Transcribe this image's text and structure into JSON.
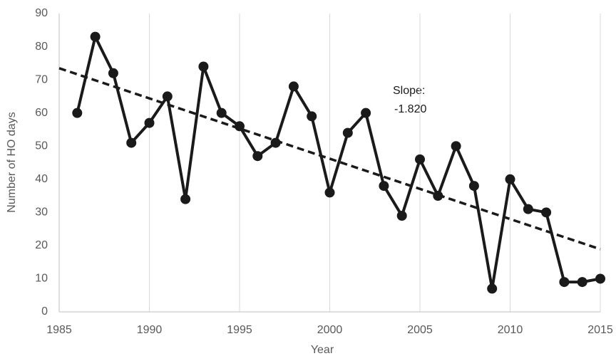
{
  "chart_data": {
    "type": "line",
    "x_label": "Year",
    "y_label": "Number of HO days",
    "x": [
      1986,
      1987,
      1988,
      1989,
      1990,
      1991,
      1992,
      1993,
      1994,
      1995,
      1996,
      1997,
      1998,
      1999,
      2000,
      2001,
      2002,
      2003,
      2004,
      2005,
      2006,
      2007,
      2008,
      2009,
      2010,
      2011,
      2012,
      2013,
      2014,
      2015
    ],
    "series": [
      {
        "color": "#1a1a1a",
        "values": [
          60,
          83,
          72,
          51,
          57,
          65,
          34,
          74,
          60,
          56,
          47,
          51,
          68,
          59,
          36,
          54,
          60,
          38,
          29,
          46,
          35,
          50,
          38,
          7,
          40,
          31,
          30,
          9,
          9,
          10
        ]
      }
    ],
    "trendline": {
      "x": [
        1985,
        2015
      ],
      "values": [
        73.5,
        18.9
      ],
      "color": "#1a1a1a",
      "style": "dashed"
    },
    "annotations": [
      "Slope:",
      "-1.820"
    ],
    "xlim": [
      1985,
      2015
    ],
    "xticks": [
      1985,
      1990,
      1995,
      2000,
      2005,
      2010,
      2015
    ],
    "ylim": [
      0,
      90
    ],
    "yticks": [
      0,
      10,
      20,
      30,
      40,
      50,
      60,
      70,
      80,
      90
    ],
    "grid": "x"
  }
}
